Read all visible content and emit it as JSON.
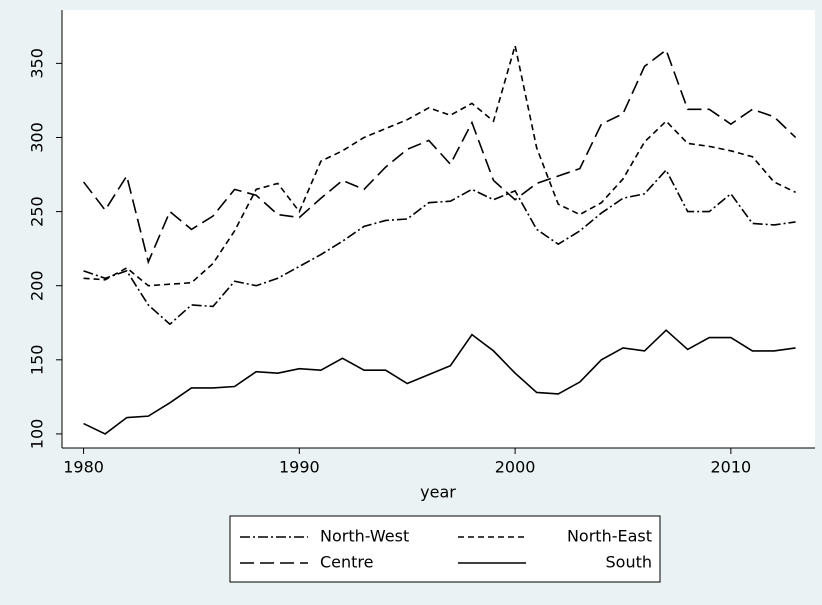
{
  "chart_data": {
    "type": "line",
    "x": [
      1980,
      1981,
      1982,
      1983,
      1984,
      1985,
      1986,
      1987,
      1988,
      1989,
      1990,
      1991,
      1992,
      1993,
      1994,
      1995,
      1996,
      1997,
      1998,
      1999,
      2000,
      2001,
      2002,
      2003,
      2004,
      2005,
      2006,
      2007,
      2008,
      2009,
      2010,
      2011,
      2012,
      2013
    ],
    "series": [
      {
        "name": "North-West",
        "color": "#000000",
        "dash": "10,3,2,3",
        "values": [
          210,
          205,
          210,
          187,
          174,
          187,
          186,
          203,
          200,
          205,
          213,
          221,
          230,
          240,
          244,
          245,
          256,
          257,
          265,
          258,
          264,
          238,
          228,
          237,
          249,
          259,
          262,
          278,
          250,
          250,
          262,
          242,
          241,
          243
        ]
      },
      {
        "name": "North-East",
        "color": "#000000",
        "dash": "6,4",
        "values": [
          205,
          204,
          212,
          200,
          201,
          202,
          215,
          237,
          265,
          269,
          250,
          284,
          291,
          300,
          306,
          312,
          320,
          315,
          323,
          311,
          362,
          293,
          255,
          248,
          256,
          272,
          297,
          311,
          296,
          294,
          291,
          287,
          270,
          263
        ]
      },
      {
        "name": "Centre",
        "color": "#000000",
        "dash": "14,6",
        "values": [
          270,
          251,
          274,
          216,
          250,
          238,
          247,
          265,
          261,
          248,
          246,
          259,
          271,
          265,
          280,
          292,
          298,
          282,
          310,
          271,
          258,
          269,
          274,
          279,
          309,
          316,
          348,
          359,
          319,
          319,
          309,
          319,
          314,
          300
        ]
      },
      {
        "name": "South",
        "color": "#000000",
        "dash": "none",
        "values": [
          107,
          100,
          111,
          112,
          121,
          131,
          131,
          132,
          142,
          141,
          144,
          143,
          151,
          143,
          143,
          134,
          140,
          146,
          167,
          156,
          141,
          128,
          127,
          135,
          150,
          158,
          156,
          170,
          157,
          165,
          165,
          156,
          156,
          158
        ]
      }
    ],
    "xlabel": "year",
    "xlim": [
      1979,
      2013.9
    ],
    "xticks": [
      1980,
      1990,
      2000,
      2010
    ],
    "ylim": [
      90.5,
      386
    ],
    "yticks": [
      100,
      150,
      200,
      250,
      300,
      350
    ],
    "legend": "bottom"
  }
}
